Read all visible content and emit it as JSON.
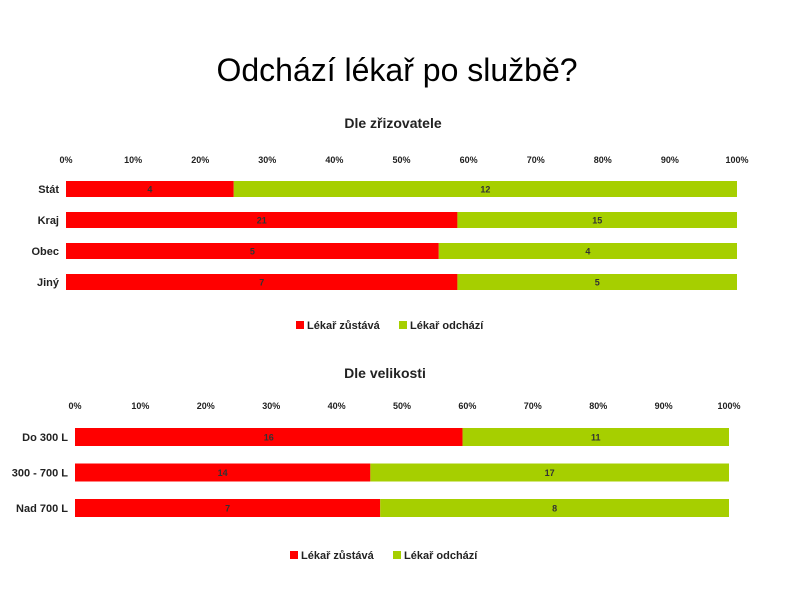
{
  "slide": {
    "title": "Odchází lékař po službě?"
  },
  "chart_data": [
    {
      "type": "bar",
      "orientation": "horizontal",
      "stacked": "percent",
      "title": "Dle zřizovatele",
      "categories": [
        "Stát",
        "Kraj",
        "Obec",
        "Jiný"
      ],
      "series": [
        {
          "name": "Lékař zůstává",
          "color": "#ff0000",
          "values": [
            4,
            21,
            5,
            7
          ]
        },
        {
          "name": "Lékař odchází",
          "color": "#a6cf00",
          "values": [
            12,
            15,
            4,
            5
          ]
        }
      ],
      "xlim": [
        0,
        100
      ],
      "xticks": [
        "0%",
        "10%",
        "20%",
        "30%",
        "40%",
        "50%",
        "60%",
        "70%",
        "80%",
        "90%",
        "100%"
      ],
      "tick_position": "top",
      "grid": false,
      "legend": "bottom"
    },
    {
      "type": "bar",
      "orientation": "horizontal",
      "stacked": "percent",
      "title": "Dle velikosti",
      "categories": [
        "Do 300 L",
        "300 - 700 L",
        "Nad 700 L"
      ],
      "series": [
        {
          "name": "Lékař zůstává",
          "color": "#ff0000",
          "values": [
            16,
            14,
            7
          ]
        },
        {
          "name": "Lékař odchází",
          "color": "#a6cf00",
          "values": [
            11,
            17,
            8
          ]
        }
      ],
      "xlim": [
        0,
        100
      ],
      "xticks": [
        "0%",
        "10%",
        "20%",
        "30%",
        "40%",
        "50%",
        "60%",
        "70%",
        "80%",
        "90%",
        "100%"
      ],
      "tick_position": "top",
      "grid": false,
      "legend": "bottom"
    }
  ]
}
